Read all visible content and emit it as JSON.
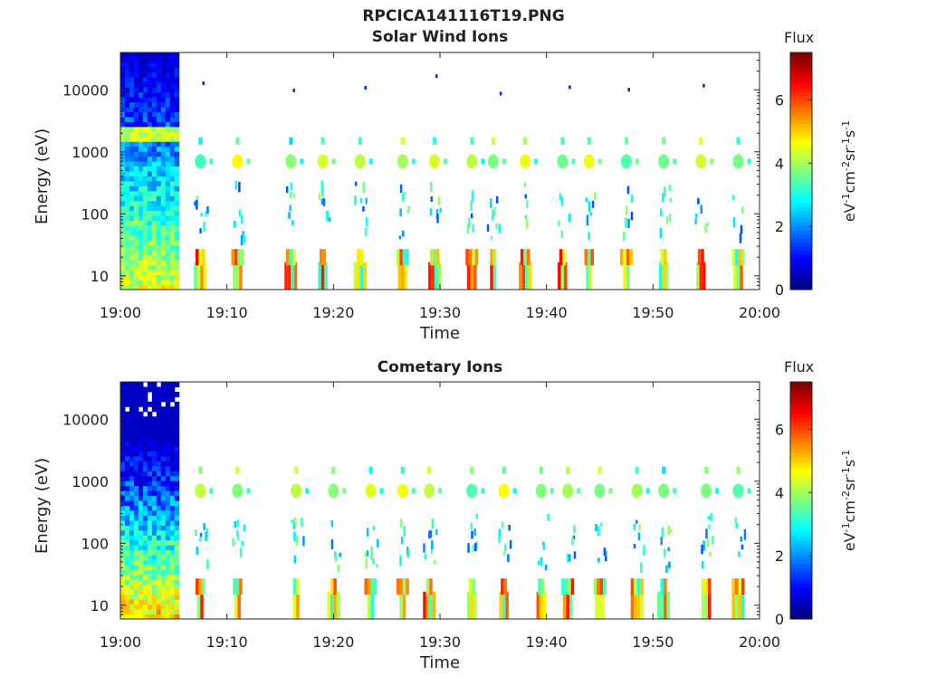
{
  "figure_title": "RPCICA141116T19.PNG",
  "chart_data": [
    {
      "type": "heatmap",
      "title": "Solar Wind Ions",
      "xlabel": "Time",
      "ylabel": "Energy (eV)",
      "x_ticks": [
        "19:00",
        "19:10",
        "19:20",
        "19:30",
        "19:40",
        "19:50",
        "20:00"
      ],
      "xlim": [
        "19:00",
        "20:00"
      ],
      "y_scale": "log",
      "y_ticks": [
        "10",
        "100",
        "1000",
        "10000"
      ],
      "ylim": [
        6,
        40000
      ],
      "colorbar": {
        "title": "Flux",
        "ticks": [
          "0",
          "2",
          "4",
          "6"
        ],
        "range": [
          0,
          7.5
        ],
        "units": "eV⁻¹cm⁻²sr⁻¹s⁻¹",
        "units_parts": [
          "eV",
          "-1",
          "cm",
          "-2",
          "sr",
          "-1",
          "s",
          "-1"
        ]
      },
      "dense_block": {
        "x_start": "19:00",
        "x_end": "19:05.5"
      },
      "bursts_minutes": [
        7.5,
        11,
        16,
        19,
        22.5,
        26.5,
        29.5,
        33,
        35,
        38,
        41.5,
        44,
        47.5,
        51,
        54.5,
        58
      ],
      "band_energies_eV": [
        10,
        20,
        100,
        150,
        700,
        1500,
        10000
      ]
    },
    {
      "type": "heatmap",
      "title": "Cometary Ions",
      "xlabel": "Time",
      "ylabel": "Energy (eV)",
      "x_ticks": [
        "19:00",
        "19:10",
        "19:20",
        "19:30",
        "19:40",
        "19:50",
        "20:00"
      ],
      "xlim": [
        "19:00",
        "20:00"
      ],
      "y_scale": "log",
      "y_ticks": [
        "10",
        "100",
        "1000",
        "10000"
      ],
      "ylim": [
        6,
        40000
      ],
      "colorbar": {
        "title": "Flux",
        "ticks": [
          "0",
          "2",
          "4",
          "6"
        ],
        "range": [
          0,
          7.5
        ],
        "units": "eV⁻¹cm⁻²sr⁻¹s⁻¹",
        "units_parts": [
          "eV",
          "-1",
          "cm",
          "-2",
          "sr",
          "-1",
          "s",
          "-1"
        ]
      },
      "dense_block": {
        "x_start": "19:00",
        "x_end": "19:05.5"
      },
      "bursts_minutes": [
        7.5,
        11,
        16.5,
        20,
        23.5,
        26.5,
        29,
        33,
        36,
        39.5,
        42,
        45,
        48.5,
        51,
        55,
        58
      ],
      "band_energies_eV": [
        10,
        20,
        100,
        150,
        700,
        1500
      ]
    }
  ]
}
